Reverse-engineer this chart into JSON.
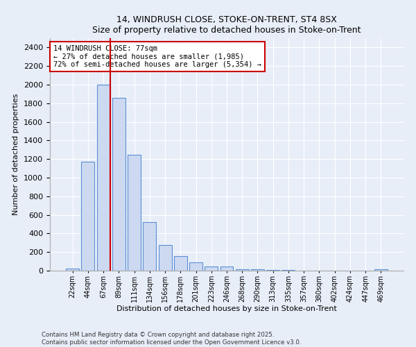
{
  "title1": "14, WINDRUSH CLOSE, STOKE-ON-TRENT, ST4 8SX",
  "title2": "Size of property relative to detached houses in Stoke-on-Trent",
  "xlabel": "Distribution of detached houses by size in Stoke-on-Trent",
  "ylabel": "Number of detached properties",
  "bin_labels": [
    "22sqm",
    "44sqm",
    "67sqm",
    "89sqm",
    "111sqm",
    "134sqm",
    "156sqm",
    "178sqm",
    "201sqm",
    "223sqm",
    "246sqm",
    "268sqm",
    "290sqm",
    "313sqm",
    "335sqm",
    "357sqm",
    "380sqm",
    "402sqm",
    "424sqm",
    "447sqm",
    "469sqm"
  ],
  "bar_heights": [
    25,
    1170,
    2000,
    1860,
    1245,
    520,
    275,
    155,
    90,
    45,
    42,
    18,
    15,
    8,
    5,
    3,
    2,
    2,
    1,
    1,
    18
  ],
  "bar_color": "#ccd9f0",
  "bar_edge_color": "#5b8fd4",
  "red_line_index": 2,
  "annotation_title": "14 WINDRUSH CLOSE: 77sqm",
  "annotation_line1": "← 27% of detached houses are smaller (1,985)",
  "annotation_line2": "72% of semi-detached houses are larger (5,354) →",
  "annotation_box_color": "#ffffff",
  "annotation_box_edge": "#cc0000",
  "red_line_color": "#cc0000",
  "ylim": [
    0,
    2500
  ],
  "yticks": [
    0,
    200,
    400,
    600,
    800,
    1000,
    1200,
    1400,
    1600,
    1800,
    2000,
    2200,
    2400
  ],
  "footer1": "Contains HM Land Registry data © Crown copyright and database right 2025.",
  "footer2": "Contains public sector information licensed under the Open Government Licence v3.0.",
  "bg_color": "#e8eef8",
  "grid_color": "#ffffff"
}
